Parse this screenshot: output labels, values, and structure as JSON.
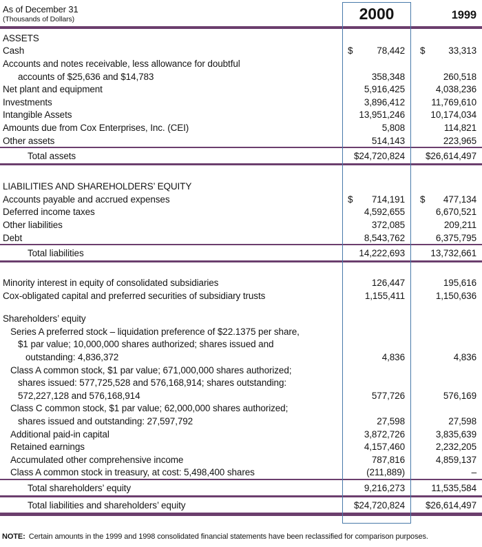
{
  "header": {
    "as_of": "As of December 31",
    "units": "(Thousands of Dollars)",
    "col_2000": "2000",
    "col_1999": "1999"
  },
  "colors": {
    "rule": "#6b3e6d",
    "box": "#4779a9",
    "text": "#141414"
  },
  "rows": [
    {
      "type": "section",
      "label": "ASSETS",
      "level": 0
    },
    {
      "type": "item",
      "label": "Cash",
      "level": 0,
      "dollar1": "$",
      "value1": "78,442",
      "dollar2": "$",
      "value2": "33,313"
    },
    {
      "type": "item",
      "label": "Accounts and notes receivable, less allowance for doubtful",
      "level": 0
    },
    {
      "type": "item",
      "label": "accounts of $25,636 and $14,783",
      "level": 2,
      "value1": "358,348",
      "value2": "260,518"
    },
    {
      "type": "item",
      "label": "Net plant and equipment",
      "level": 0,
      "value1": "5,916,425",
      "value2": "4,038,236"
    },
    {
      "type": "item",
      "label": "Investments",
      "level": 0,
      "value1": "3,896,412",
      "value2": "11,769,610"
    },
    {
      "type": "item",
      "label": "Intangible Assets",
      "level": 0,
      "value1": "13,951,246",
      "value2": "10,174,034"
    },
    {
      "type": "item",
      "label": "Amounts due from Cox Enterprises, Inc. (CEI)",
      "level": 0,
      "value1": "5,808",
      "value2": "114,821"
    },
    {
      "type": "item",
      "label": "Other assets",
      "level": 0,
      "value1": "514,143",
      "value2": "223,965"
    },
    {
      "type": "total",
      "label": "Total assets",
      "value1": "$24,720,824",
      "value2": "$26,614,497",
      "rule_above": "thin",
      "rule_below": "medium"
    },
    {
      "type": "gap",
      "h": 21
    },
    {
      "type": "section",
      "label": "LIABILITIES AND SHAREHOLDERS’ EQUITY",
      "level": 0
    },
    {
      "type": "item",
      "label": "Accounts payable and accrued expenses",
      "level": 0,
      "dollar1": "$",
      "value1": "714,191",
      "dollar2": "$",
      "value2": "477,134"
    },
    {
      "type": "item",
      "label": "Deferred income taxes",
      "level": 0,
      "value1": "4,592,655",
      "value2": "6,670,521"
    },
    {
      "type": "item",
      "label": "Other liabilities",
      "level": 0,
      "value1": "372,085",
      "value2": "209,211"
    },
    {
      "type": "item",
      "label": "Debt",
      "level": 0,
      "value1": "8,543,762",
      "value2": "6,375,795"
    },
    {
      "type": "total",
      "label": "Total liabilities",
      "value1": "14,222,693",
      "value2": "13,732,661",
      "rule_above": "thin",
      "rule_below": "medium"
    },
    {
      "type": "gap",
      "h": 20
    },
    {
      "type": "item",
      "label": "Minority interest in equity of consolidated subsidiaries",
      "level": 0,
      "value1": "126,447",
      "value2": "195,616"
    },
    {
      "type": "item",
      "label": "Cox-obligated capital and preferred securities of subsidiary trusts",
      "level": 0,
      "value1": "1,155,411",
      "value2": "1,150,636"
    },
    {
      "type": "gap",
      "h": 15
    },
    {
      "type": "section",
      "label": "Shareholders’ equity",
      "level": 0
    },
    {
      "type": "item",
      "label": "Series A preferred stock –  liquidation preference of $22.1375 per share,",
      "level": 1
    },
    {
      "type": "item",
      "label": "$1 par value; 10,000,000 shares authorized; shares issued and",
      "level": 2
    },
    {
      "type": "item",
      "label": "outstanding: 4,836,372",
      "level": 3,
      "value1": "4,836",
      "value2": "4,836"
    },
    {
      "type": "item",
      "label": "Class A common stock, $1 par value; 671,000,000 shares authorized;",
      "level": 1
    },
    {
      "type": "item",
      "label": "shares issued: 577,725,528 and 576,168,914; shares outstanding:",
      "level": 2
    },
    {
      "type": "item",
      "label": "572,227,128 and 576,168,914",
      "level": 2,
      "value1": "577,726",
      "value2": "576,169"
    },
    {
      "type": "item",
      "label": "Class C common stock, $1 par value; 62,000,000 shares authorized;",
      "level": 1
    },
    {
      "type": "item",
      "label": "shares issued and outstanding: 27,597,792",
      "level": 2,
      "value1": "27,598",
      "value2": "27,598"
    },
    {
      "type": "item",
      "label": "Additional paid-in capital",
      "level": 1,
      "value1": "3,872,726",
      "value2": "3,835,639"
    },
    {
      "type": "item",
      "label": "Retained earnings",
      "level": 1,
      "value1": "4,157,460",
      "value2": "2,232,205"
    },
    {
      "type": "item",
      "label": "Accumulated other comprehensive income",
      "level": 1,
      "value1": "787,816",
      "value2": "4,859,137"
    },
    {
      "type": "item",
      "label": "Class A common stock in treasury, at cost: 5,498,400 shares",
      "level": 1,
      "value1": "(211,889)",
      "value2": "–"
    },
    {
      "type": "total",
      "label": "Total shareholders’ equity",
      "value1": "9,216,273",
      "value2": "11,535,584",
      "rule_above": "thin",
      "rule_below": "medium"
    },
    {
      "type": "total",
      "label": "Total liabilities and shareholders’ equity",
      "value1": "$24,720,824",
      "value2": "$26,614,497",
      "rule_below": "thick"
    }
  ],
  "note": {
    "label": "NOTE:",
    "text": "Certain amounts in the 1999 and 1998 consolidated financial statements have been reclassified for comparison purposes."
  }
}
